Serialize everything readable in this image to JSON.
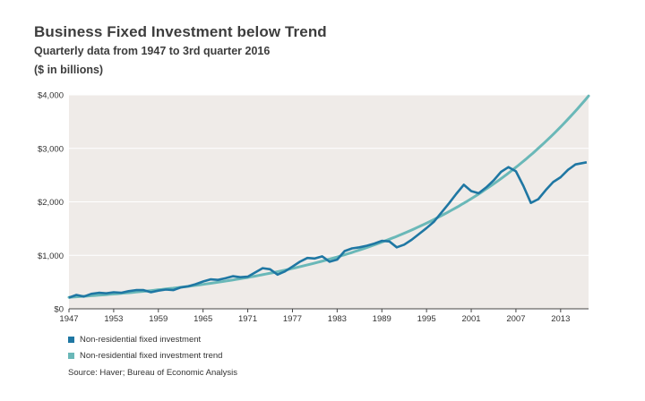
{
  "title": "Business Fixed Investment below Trend",
  "subtitle": "Quarterly data from 1947 to 3rd quarter 2016",
  "units": "($ in billions)",
  "source": "Source: Haver; Bureau of Economic Analysis",
  "colors": {
    "actual": "#1f77a3",
    "trend": "#6ab8b8",
    "plot_bg": "#efebe8"
  },
  "chart_data": {
    "type": "line",
    "title": "Business Fixed Investment below Trend",
    "xlim": [
      1947,
      2016.75
    ],
    "ylim": [
      0,
      4000
    ],
    "x_ticks": [
      "1947",
      "1953",
      "1959",
      "1965",
      "1971",
      "1977",
      "1983",
      "1989",
      "1995",
      "2001",
      "2007",
      "2013"
    ],
    "y_ticks": [
      "$0",
      "$1,000",
      "$2,000",
      "$3,000",
      "$4,000"
    ],
    "grid": "horizontal",
    "legend_position": "bottom-left",
    "series": [
      {
        "name": "Non-residential fixed investment",
        "x": [
          1947,
          1948,
          1949,
          1950,
          1951,
          1952,
          1953,
          1954,
          1955,
          1956,
          1957,
          1958,
          1959,
          1960,
          1961,
          1962,
          1963,
          1964,
          1965,
          1966,
          1967,
          1968,
          1969,
          1970,
          1971,
          1972,
          1973,
          1974,
          1975,
          1976,
          1977,
          1978,
          1979,
          1980,
          1981,
          1982,
          1983,
          1984,
          1985,
          1986,
          1987,
          1988,
          1989,
          1990,
          1991,
          1992,
          1993,
          1994,
          1995,
          1996,
          1997,
          1998,
          1999,
          2000,
          2001,
          2002,
          2003,
          2004,
          2005,
          2006,
          2007,
          2008,
          2009,
          2010,
          2011,
          2012,
          2013,
          2014,
          2015,
          2016.5
        ],
        "y": [
          210,
          260,
          230,
          280,
          300,
          290,
          310,
          300,
          330,
          350,
          350,
          310,
          340,
          360,
          350,
          400,
          420,
          460,
          510,
          550,
          540,
          570,
          610,
          590,
          600,
          680,
          760,
          740,
          640,
          700,
          790,
          880,
          950,
          940,
          980,
          880,
          920,
          1080,
          1130,
          1150,
          1180,
          1220,
          1270,
          1260,
          1150,
          1200,
          1290,
          1400,
          1510,
          1630,
          1800,
          1970,
          2150,
          2320,
          2200,
          2160,
          2270,
          2400,
          2560,
          2650,
          2570,
          2300,
          1980,
          2050,
          2220,
          2370,
          2460,
          2600,
          2700,
          2740
        ]
      },
      {
        "name": "Non-residential fixed investment trend",
        "x": [
          1947,
          1953,
          1959,
          1965,
          1971,
          1977,
          1983,
          1989,
          1995,
          2001,
          2007,
          2013,
          2016.75
        ],
        "y": [
          215,
          270,
          340,
          430,
          560,
          740,
          980,
          1300,
          1720,
          2250,
          2900,
          3620,
          3980
        ]
      }
    ]
  }
}
